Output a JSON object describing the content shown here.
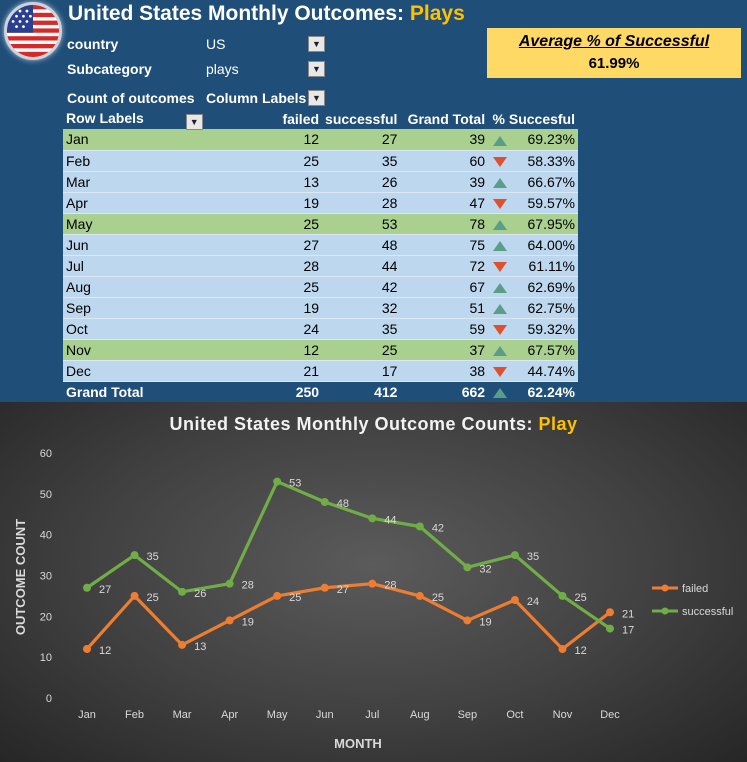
{
  "header": {
    "title_prefix": "United States Monthly Outcomes: ",
    "title_highlight": "Plays"
  },
  "filters": [
    {
      "label": "country",
      "value": "US"
    },
    {
      "label": "Subcategory",
      "value": "plays"
    },
    {
      "label": "Count of outcomes",
      "value": "Column Labels"
    }
  ],
  "summary": {
    "label": "Average % of Successful",
    "value": "61.99%"
  },
  "pivot": {
    "headers": [
      "Row Labels",
      "failed",
      "successful",
      "Grand Total",
      "% Succesful"
    ],
    "rows": [
      {
        "month": "Jan",
        "failed": "12",
        "successful": "27",
        "total": "39",
        "trend": "up",
        "pct": "69.23%",
        "highlight": true
      },
      {
        "month": "Feb",
        "failed": "25",
        "successful": "35",
        "total": "60",
        "trend": "down",
        "pct": "58.33%",
        "highlight": false
      },
      {
        "month": "Mar",
        "failed": "13",
        "successful": "26",
        "total": "39",
        "trend": "up",
        "pct": "66.67%",
        "highlight": false
      },
      {
        "month": "Apr",
        "failed": "19",
        "successful": "28",
        "total": "47",
        "trend": "down",
        "pct": "59.57%",
        "highlight": false
      },
      {
        "month": "May",
        "failed": "25",
        "successful": "53",
        "total": "78",
        "trend": "up",
        "pct": "67.95%",
        "highlight": true
      },
      {
        "month": "Jun",
        "failed": "27",
        "successful": "48",
        "total": "75",
        "trend": "up",
        "pct": "64.00%",
        "highlight": false
      },
      {
        "month": "Jul",
        "failed": "28",
        "successful": "44",
        "total": "72",
        "trend": "down",
        "pct": "61.11%",
        "highlight": false
      },
      {
        "month": "Aug",
        "failed": "25",
        "successful": "42",
        "total": "67",
        "trend": "up",
        "pct": "62.69%",
        "highlight": false
      },
      {
        "month": "Sep",
        "failed": "19",
        "successful": "32",
        "total": "51",
        "trend": "up",
        "pct": "62.75%",
        "highlight": false
      },
      {
        "month": "Oct",
        "failed": "24",
        "successful": "35",
        "total": "59",
        "trend": "down",
        "pct": "59.32%",
        "highlight": false
      },
      {
        "month": "Nov",
        "failed": "12",
        "successful": "25",
        "total": "37",
        "trend": "up",
        "pct": "67.57%",
        "highlight": true
      },
      {
        "month": "Dec",
        "failed": "21",
        "successful": "17",
        "total": "38",
        "trend": "down",
        "pct": "44.74%",
        "highlight": false
      }
    ],
    "grand_total": {
      "label": "Grand Total",
      "failed": "250",
      "successful": "412",
      "total": "662",
      "trend": "up",
      "pct": "62.24%"
    }
  },
  "chart_data": {
    "type": "line",
    "title_prefix": "United States Monthly Outcome Counts: ",
    "title_highlight": "Play",
    "xlabel": "MONTH",
    "ylabel": "OUTCOME COUNT",
    "categories": [
      "Jan",
      "Feb",
      "Mar",
      "Apr",
      "May",
      "Jun",
      "Jul",
      "Aug",
      "Sep",
      "Oct",
      "Nov",
      "Dec"
    ],
    "ylim": [
      0,
      60
    ],
    "yticks": [
      0,
      10,
      20,
      30,
      40,
      50,
      60
    ],
    "grid": false,
    "legend": "right",
    "series": [
      {
        "name": "failed",
        "color": "#ed7d31",
        "values": [
          12,
          25,
          13,
          19,
          25,
          27,
          28,
          25,
          19,
          24,
          12,
          21
        ]
      },
      {
        "name": "successful",
        "color": "#70ad47",
        "values": [
          27,
          35,
          26,
          28,
          53,
          48,
          44,
          42,
          32,
          35,
          25,
          17
        ]
      }
    ]
  }
}
